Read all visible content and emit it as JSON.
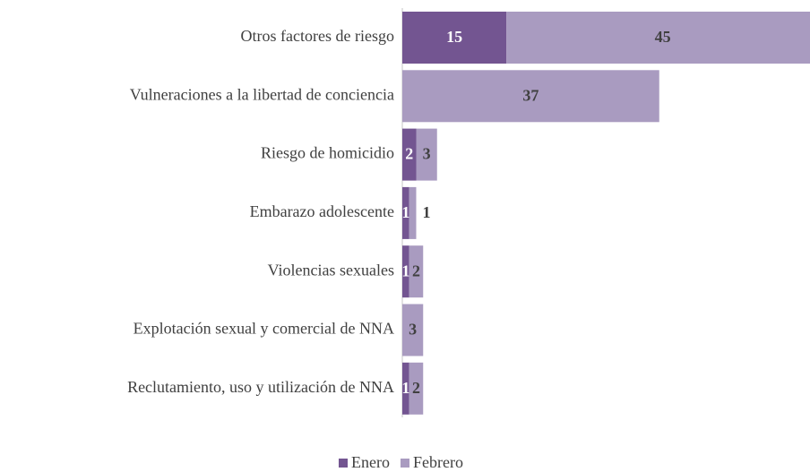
{
  "chart_data": {
    "type": "stacked_bar_horizontal",
    "categories": [
      "Otros factores de riesgo",
      "Vulneraciones a la libertad de conciencia",
      "Riesgo de homicidio",
      "Embarazo adolescente",
      "Violencias sexuales",
      "Explotación sexual y comercial de NNA",
      "Reclutamiento, uso y utilización de NNA"
    ],
    "series": [
      {
        "name": "Enero",
        "color": "#735591",
        "label_color": "#ffffff",
        "values": [
          15,
          null,
          2,
          1,
          1,
          null,
          1
        ]
      },
      {
        "name": "Febrero",
        "color": "#a99bc0",
        "label_color": "#404040",
        "values": [
          45,
          37,
          3,
          1,
          2,
          3,
          2
        ]
      }
    ],
    "legend": "bottom"
  }
}
